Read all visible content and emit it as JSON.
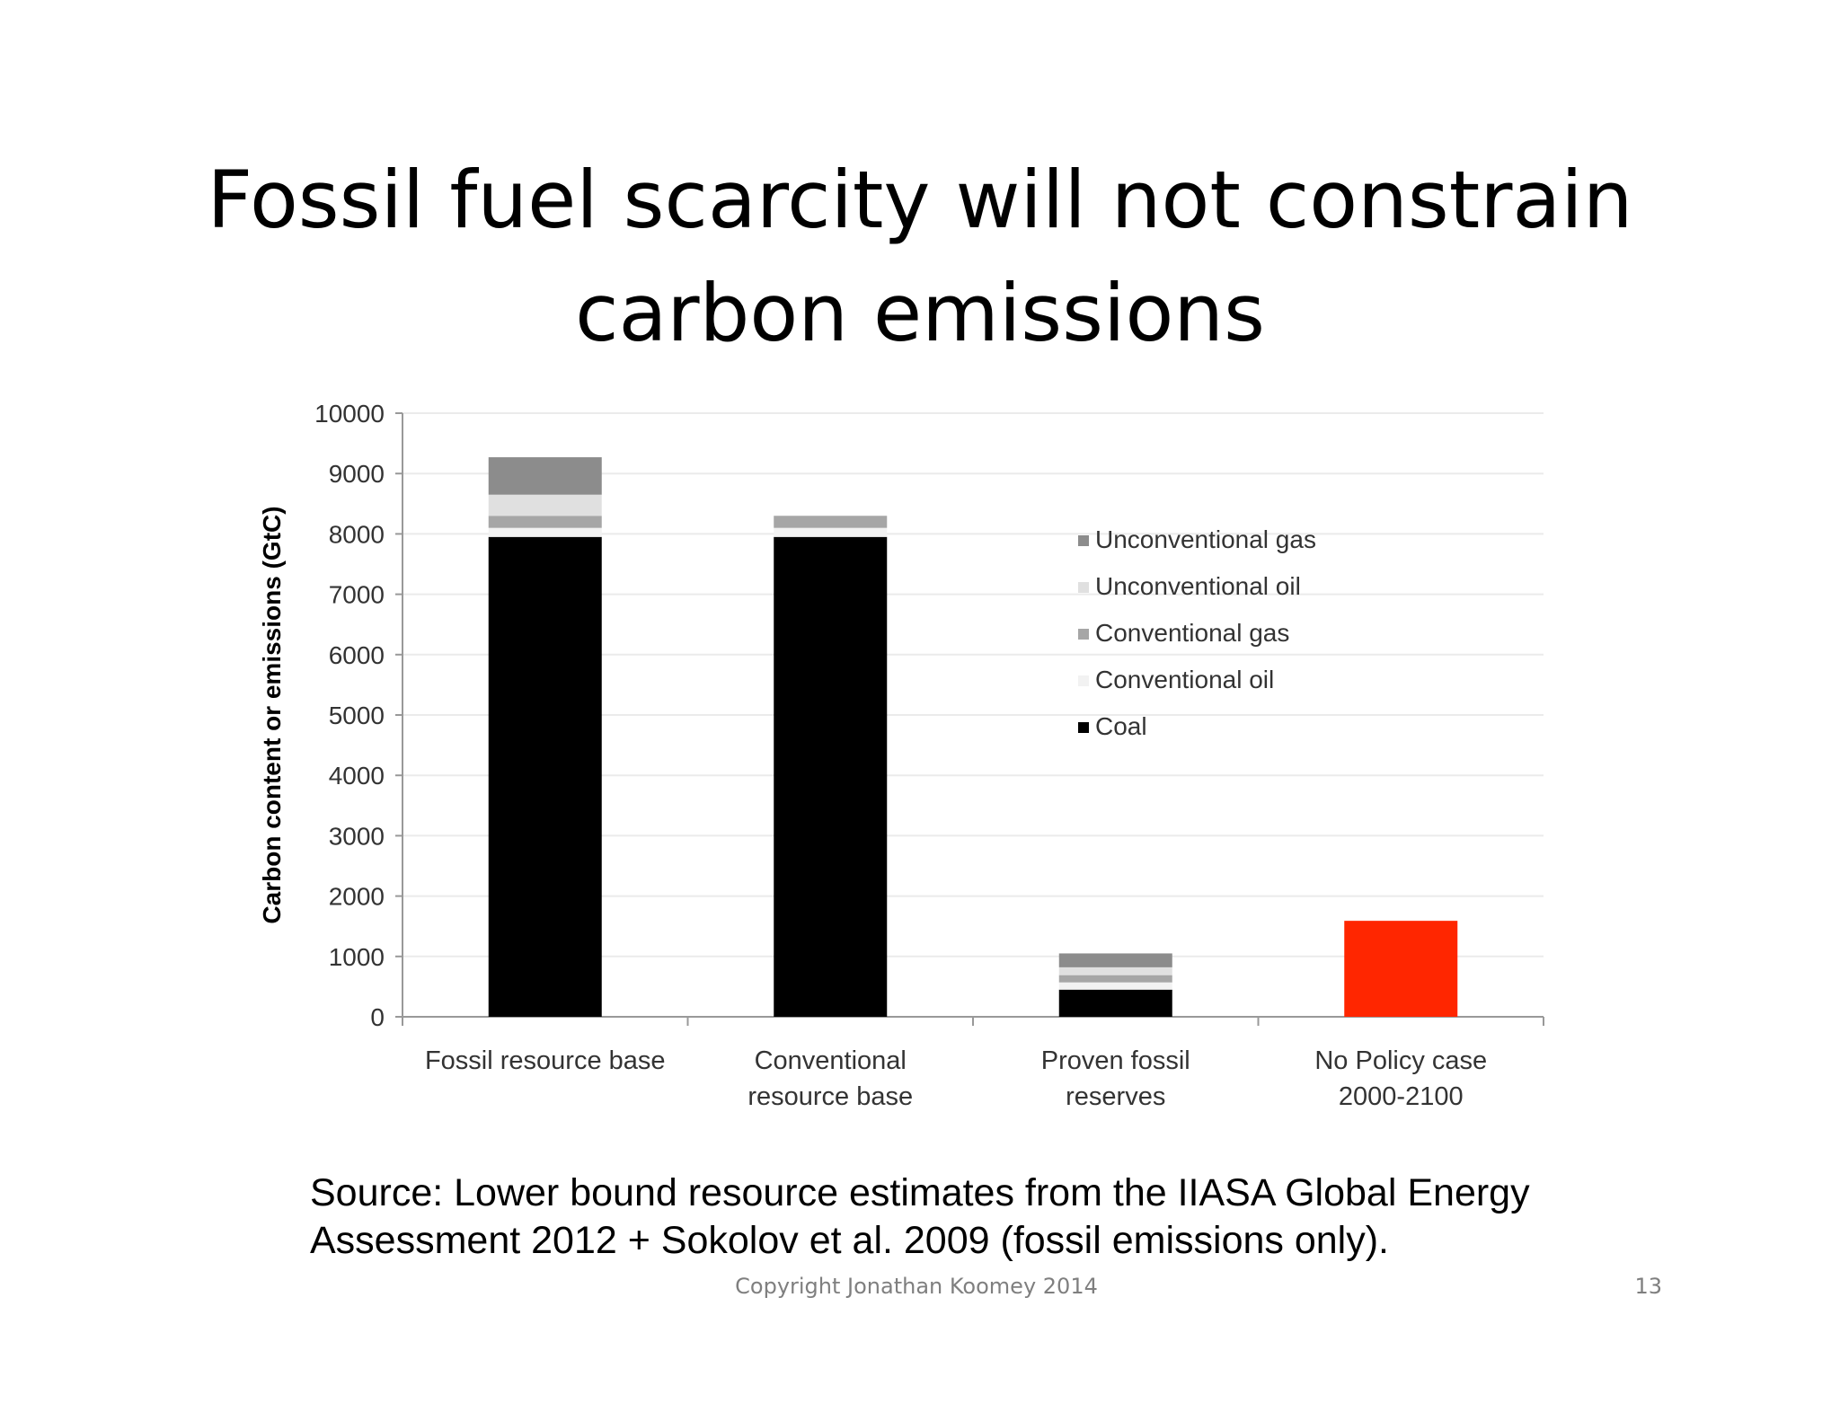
{
  "slide": {
    "title_lines": [
      "Fossil fuel scarcity will not constrain",
      "carbon emissions"
    ],
    "source_lines": [
      "Source:  Lower bound resource estimates from the IIASA Global Energy",
      "Assessment 2012 + Sokolov et al. 2009 (fossil emissions only)."
    ],
    "footer": "Copyright Jonathan Koomey 2014",
    "page_number": "13"
  },
  "chart_data": {
    "type": "bar",
    "stacked": true,
    "title": "",
    "xlabel": "",
    "ylabel": "Carbon content or emissions (GtC)",
    "ylim": [
      0,
      10000
    ],
    "yticks": [
      0,
      1000,
      2000,
      3000,
      4000,
      5000,
      6000,
      7000,
      8000,
      9000,
      10000
    ],
    "grid": true,
    "legend_position": "right",
    "categories": [
      [
        "Fossil resource base"
      ],
      [
        "Conventional",
        "resource base"
      ],
      [
        "Proven fossil",
        "reserves"
      ],
      [
        "No Policy case",
        "2000-2100"
      ]
    ],
    "series": [
      {
        "name": "Coal",
        "color": "#000000",
        "values": [
          7950,
          7950,
          450,
          0
        ]
      },
      {
        "name": "Conventional oil",
        "color": "#f2f2f2",
        "values": [
          150,
          150,
          120,
          0
        ]
      },
      {
        "name": "Conventional gas",
        "color": "#a6a6a6",
        "values": [
          200,
          200,
          120,
          0
        ]
      },
      {
        "name": "Unconventional oil",
        "color": "#e0e0e0",
        "values": [
          350,
          0,
          130,
          0
        ]
      },
      {
        "name": "Unconventional gas",
        "color": "#8c8c8c",
        "values": [
          620,
          0,
          230,
          0
        ]
      },
      {
        "name": "",
        "color": "#ff2600",
        "values": [
          0,
          0,
          0,
          1590
        ]
      }
    ],
    "legend_order": [
      "Unconventional gas",
      "Unconventional oil",
      "Conventional gas",
      "Conventional oil",
      "Coal"
    ]
  }
}
